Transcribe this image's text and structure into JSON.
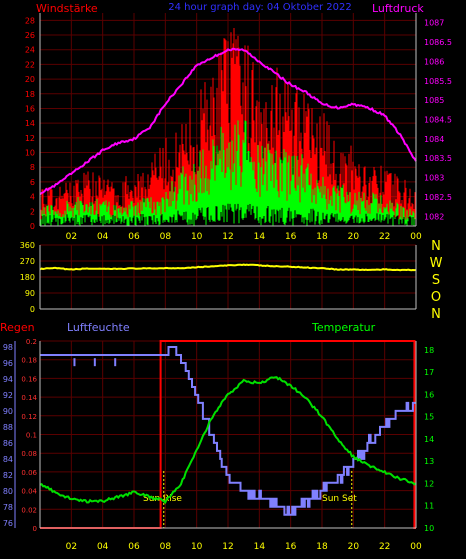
{
  "header": {
    "left": "Windstärke",
    "center": "24 hour graph day: 04 Oktober 2022",
    "right": "Luftdruck"
  },
  "bottom_header": {
    "regen": "Regen",
    "luftfeuchte": "Luftfeuchte",
    "temperatur": "Temperatur"
  },
  "compass": [
    "N",
    "W",
    "S",
    "O",
    "N"
  ],
  "annotations": {
    "sunrise": "Sun Rise",
    "sunset": "Sun Set"
  },
  "colors": {
    "bg": "#000000",
    "grid": "#5a0000",
    "axis": "#c0c0c0",
    "wind_gust": "#ff0000",
    "wind_speed": "#00ff00",
    "wind_base": "#000000",
    "pressure": "#ff00ff",
    "direction": "#ffff00",
    "rain": "#ff0000",
    "humidity": "#8080ff",
    "temperature": "#00e000",
    "hour_ticks": "#ffff00",
    "left_ticks_top": "#ff0000",
    "right_ticks_top": "#ff00ff",
    "humidity_ticks": "#8080ff",
    "rain_ticks": "#ff3030",
    "temp_ticks": "#00ff00",
    "direction_ticks": "#ffff00",
    "center_title": "#3030ff"
  },
  "chart_data": [
    {
      "type": "bar",
      "name": "wind",
      "x_ticks": [
        "02",
        "04",
        "06",
        "08",
        "10",
        "12",
        "14",
        "16",
        "18",
        "20",
        "22",
        "00"
      ],
      "y_ticks_left": [
        0,
        2,
        4,
        6,
        8,
        10,
        12,
        14,
        16,
        18,
        20,
        22,
        24,
        26,
        28
      ],
      "y_ticks_right": [
        1082,
        1082.5,
        1083,
        1083.5,
        1084,
        1084.5,
        1085,
        1085.5,
        1086,
        1086.5,
        1087
      ],
      "ylim": [
        0,
        29
      ],
      "ylim_right": [
        1081.75,
        1087.25
      ],
      "xlim_hours": [
        0,
        24
      ],
      "wind_gust_envelope": [
        [
          0,
          6
        ],
        [
          1,
          5
        ],
        [
          2,
          7
        ],
        [
          3,
          8
        ],
        [
          4,
          7
        ],
        [
          5,
          6
        ],
        [
          6,
          8
        ],
        [
          7,
          9
        ],
        [
          8,
          12
        ],
        [
          9,
          14
        ],
        [
          10,
          18
        ],
        [
          11,
          22
        ],
        [
          12,
          28
        ],
        [
          13,
          26
        ],
        [
          14,
          23
        ],
        [
          15,
          24
        ],
        [
          16,
          20
        ],
        [
          17,
          18
        ],
        [
          18,
          16
        ],
        [
          19,
          12
        ],
        [
          20,
          11
        ],
        [
          21,
          9
        ],
        [
          22,
          8
        ],
        [
          23,
          7
        ],
        [
          24,
          5
        ]
      ],
      "wind_speed_envelope": [
        [
          0,
          3
        ],
        [
          1,
          3
        ],
        [
          2,
          4
        ],
        [
          3,
          4
        ],
        [
          4,
          4
        ],
        [
          5,
          3
        ],
        [
          6,
          4
        ],
        [
          7,
          4
        ],
        [
          8,
          5
        ],
        [
          9,
          8
        ],
        [
          10,
          10
        ],
        [
          11,
          12
        ],
        [
          12,
          16
        ],
        [
          13,
          15
        ],
        [
          14,
          13
        ],
        [
          15,
          12
        ],
        [
          16,
          11
        ],
        [
          17,
          10
        ],
        [
          18,
          8
        ],
        [
          19,
          6
        ],
        [
          20,
          5
        ],
        [
          21,
          5
        ],
        [
          22,
          4
        ],
        [
          23,
          3
        ],
        [
          24,
          2
        ]
      ],
      "pressure": [
        [
          0,
          1082.6
        ],
        [
          1,
          1082.8
        ],
        [
          2,
          1083.1
        ],
        [
          3,
          1083.4
        ],
        [
          4,
          1083.7
        ],
        [
          5,
          1083.9
        ],
        [
          6,
          1084.0
        ],
        [
          7,
          1084.3
        ],
        [
          8,
          1084.9
        ],
        [
          9,
          1085.4
        ],
        [
          10,
          1085.9
        ],
        [
          11,
          1086.1
        ],
        [
          12,
          1086.3
        ],
        [
          13,
          1086.3
        ],
        [
          14,
          1086.0
        ],
        [
          15,
          1085.7
        ],
        [
          16,
          1085.4
        ],
        [
          17,
          1085.2
        ],
        [
          18,
          1084.9
        ],
        [
          19,
          1084.8
        ],
        [
          20,
          1084.9
        ],
        [
          21,
          1084.8
        ],
        [
          22,
          1084.6
        ],
        [
          23,
          1084.1
        ],
        [
          24,
          1083.4
        ]
      ]
    },
    {
      "type": "line",
      "name": "wind_direction",
      "y_ticks": [
        0,
        90,
        180,
        270,
        360
      ],
      "ylim": [
        0,
        360
      ],
      "x_ticks": [
        "02",
        "04",
        "06",
        "08",
        "10",
        "12",
        "14",
        "16",
        "18",
        "20",
        "22",
        "00"
      ],
      "points": [
        [
          0,
          225
        ],
        [
          1,
          230
        ],
        [
          2,
          222
        ],
        [
          3,
          228
        ],
        [
          4,
          225
        ],
        [
          5,
          226
        ],
        [
          6,
          228
        ],
        [
          7,
          228
        ],
        [
          8,
          230
        ],
        [
          9,
          230
        ],
        [
          10,
          235
        ],
        [
          11,
          240
        ],
        [
          12,
          245
        ],
        [
          13,
          250
        ],
        [
          14,
          245
        ],
        [
          15,
          240
        ],
        [
          16,
          238
        ],
        [
          17,
          233
        ],
        [
          18,
          230
        ],
        [
          19,
          222
        ],
        [
          20,
          222
        ],
        [
          21,
          220
        ],
        [
          22,
          222
        ],
        [
          23,
          220
        ],
        [
          24,
          220
        ]
      ]
    },
    {
      "type": "line",
      "name": "rain_humidity_temperature",
      "x_ticks": [
        "02",
        "04",
        "06",
        "08",
        "10",
        "12",
        "14",
        "16",
        "18",
        "20",
        "22",
        "00"
      ],
      "y_ticks_humidity": [
        76,
        78,
        80,
        82,
        84,
        86,
        88,
        90,
        92,
        94,
        96,
        98
      ],
      "y_ticks_rain": [
        "0",
        "0.02",
        "0.04",
        "0.06",
        "0.08",
        "0.1",
        "0.12",
        "0.14",
        "0.16",
        "0.18",
        "0.2"
      ],
      "y_ticks_temp": [
        10,
        11,
        12,
        13,
        14,
        15,
        16,
        17,
        18
      ],
      "ylim_humidity": [
        75.35,
        98.75
      ],
      "ylim_temp": [
        10,
        18.4
      ],
      "ylim_rain": [
        0,
        0.2
      ],
      "sunrise_hour": 7.9,
      "sunset_hour": 19.9,
      "rain": [
        [
          0,
          0.0
        ],
        [
          7.7,
          0.0
        ],
        [
          7.7,
          0.2
        ],
        [
          23.9,
          0.2
        ],
        [
          23.9,
          0.0
        ],
        [
          24,
          0.0
        ]
      ],
      "humidity": [
        [
          0,
          96.6
        ],
        [
          3.5,
          96.6
        ],
        [
          6,
          96.6
        ],
        [
          7.6,
          96.6
        ],
        [
          7.8,
          97.2
        ],
        [
          8.5,
          97.8
        ],
        [
          9.1,
          96.0
        ],
        [
          10,
          92.0
        ],
        [
          11,
          86.5
        ],
        [
          12,
          82.0
        ],
        [
          13,
          80.2
        ],
        [
          14,
          79.0
        ],
        [
          15,
          78.2
        ],
        [
          16,
          77.3
        ],
        [
          17,
          78.5
        ],
        [
          18,
          79.8
        ],
        [
          19,
          81.5
        ],
        [
          20,
          83.5
        ],
        [
          21,
          86.0
        ],
        [
          22,
          88.0
        ],
        [
          23,
          90.0
        ],
        [
          24,
          91.0
        ]
      ],
      "temperature": [
        [
          0,
          12.0
        ],
        [
          1,
          11.6
        ],
        [
          2,
          11.3
        ],
        [
          3,
          11.2
        ],
        [
          4,
          11.2
        ],
        [
          5,
          11.4
        ],
        [
          6,
          11.6
        ],
        [
          7,
          11.4
        ],
        [
          8,
          11.2
        ],
        [
          9,
          12.0
        ],
        [
          10,
          13.5
        ],
        [
          11,
          15.0
        ],
        [
          12,
          16.0
        ],
        [
          13,
          16.6
        ],
        [
          14,
          16.5
        ],
        [
          15,
          16.8
        ],
        [
          16,
          16.4
        ],
        [
          17,
          15.8
        ],
        [
          18,
          15.0
        ],
        [
          19,
          14.0
        ],
        [
          20,
          13.2
        ],
        [
          21,
          12.8
        ],
        [
          22,
          12.5
        ],
        [
          23,
          12.2
        ],
        [
          24,
          12.0
        ]
      ]
    }
  ]
}
